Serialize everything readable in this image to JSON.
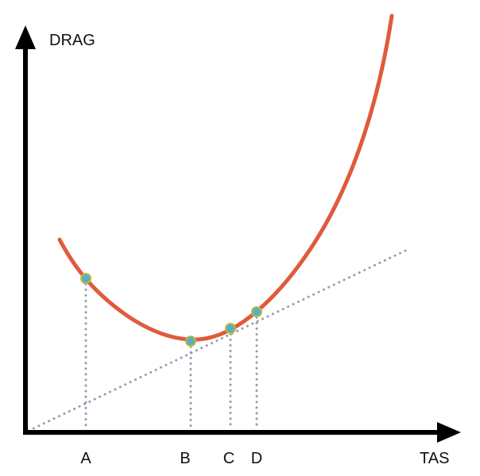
{
  "diagram": {
    "y_axis_label": "DRAG",
    "x_axis_label": "TAS",
    "points": [
      {
        "label": "A"
      },
      {
        "label": "B"
      },
      {
        "label": "C"
      },
      {
        "label": "D"
      }
    ]
  },
  "colors": {
    "curve": "#e05a3c",
    "axis": "#000000",
    "marker_fill": "#4fb3c8",
    "marker_ring": "#c8b33a",
    "guide": "#9a9ab0"
  }
}
